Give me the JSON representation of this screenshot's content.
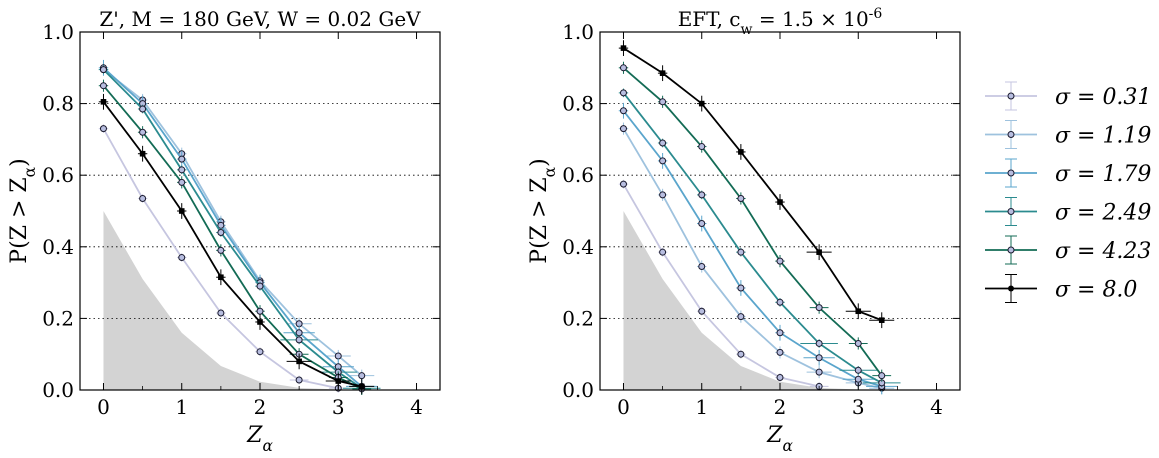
{
  "chart_data": [
    {
      "type": "line",
      "title": "Z', M = 180 GeV, W = 0.02 GeV",
      "xlabel": "Z_α",
      "ylabel": "P(Z > Z_α)",
      "xlim": [
        -0.3,
        4.3
      ],
      "ylim": [
        0.0,
        1.0
      ],
      "xticks": [
        "0",
        "1",
        "2",
        "3",
        "4"
      ],
      "yticks": [
        "0.0",
        "0.2",
        "0.4",
        "0.6",
        "0.8",
        "1.0"
      ],
      "grid": "horizontal dotted",
      "background_band": {
        "x": [
          0,
          0.5,
          1.0,
          1.5,
          2.0,
          2.5,
          3.0
        ],
        "y": [
          0.5,
          0.31,
          0.16,
          0.067,
          0.023,
          0.006,
          0.0013
        ]
      },
      "series": [
        {
          "name": "σ = 0.31",
          "color": "#c6c6e0",
          "x": [
            0,
            0.5,
            1.0,
            1.5,
            2.0,
            2.5,
            3.0
          ],
          "y": [
            0.73,
            0.535,
            0.37,
            0.215,
            0.107,
            0.028,
            0.005
          ]
        },
        {
          "name": "σ = 1.19",
          "color": "#9ec2de",
          "x": [
            0,
            0.5,
            1.0,
            1.5,
            2.0,
            2.5,
            3.0,
            3.3
          ],
          "y": [
            0.895,
            0.81,
            0.66,
            0.47,
            0.305,
            0.185,
            0.095,
            0.04
          ]
        },
        {
          "name": "σ = 1.79",
          "color": "#5aa5cc",
          "x": [
            0,
            0.5,
            1.0,
            1.5,
            2.0,
            2.5,
            3.0,
            3.3
          ],
          "y": [
            0.9,
            0.8,
            0.645,
            0.46,
            0.3,
            0.16,
            0.065,
            0.01
          ]
        },
        {
          "name": "σ = 2.49",
          "color": "#2b8b8f",
          "x": [
            0,
            0.5,
            1.0,
            1.5,
            2.0,
            2.5,
            3.0,
            3.3
          ],
          "y": [
            0.895,
            0.785,
            0.615,
            0.44,
            0.29,
            0.14,
            0.05,
            0.005
          ]
        },
        {
          "name": "σ = 4.23",
          "color": "#136b55",
          "x": [
            0,
            0.5,
            1.0,
            1.5,
            2.0,
            2.5,
            3.0,
            3.3
          ],
          "y": [
            0.85,
            0.72,
            0.58,
            0.39,
            0.22,
            0.1,
            0.035,
            0.003
          ]
        },
        {
          "name": "σ = 8.0",
          "color": "#000000",
          "x": [
            0,
            0.5,
            1.0,
            1.5,
            2.0,
            2.5,
            3.0,
            3.3
          ],
          "y": [
            0.805,
            0.66,
            0.5,
            0.315,
            0.19,
            0.08,
            0.025,
            0.01
          ]
        }
      ]
    },
    {
      "type": "line",
      "title": "EFT, c_w = 1.5 × 10^-6",
      "xlabel": "Z_α",
      "ylabel": "P(Z > Z_α)",
      "xlim": [
        -0.3,
        4.3
      ],
      "ylim": [
        0.0,
        1.0
      ],
      "xticks": [
        "0",
        "1",
        "2",
        "3",
        "4"
      ],
      "yticks": [
        "0.0",
        "0.2",
        "0.4",
        "0.6",
        "0.8",
        "1.0"
      ],
      "grid": "horizontal dotted",
      "background_band": {
        "x": [
          0,
          0.5,
          1.0,
          1.5,
          2.0,
          2.5,
          3.0
        ],
        "y": [
          0.5,
          0.31,
          0.16,
          0.067,
          0.023,
          0.006,
          0.0013
        ]
      },
      "series": [
        {
          "name": "σ = 0.31",
          "color": "#c6c6e0",
          "x": [
            0,
            0.5,
            1.0,
            1.5,
            2.0,
            2.5
          ],
          "y": [
            0.575,
            0.385,
            0.22,
            0.1,
            0.035,
            0.01
          ]
        },
        {
          "name": "σ = 1.19",
          "color": "#9ec2de",
          "x": [
            0,
            0.5,
            1.0,
            1.5,
            2.0,
            2.5,
            3.0,
            3.3
          ],
          "y": [
            0.73,
            0.545,
            0.345,
            0.205,
            0.105,
            0.05,
            0.02,
            0.005
          ]
        },
        {
          "name": "σ = 1.79",
          "color": "#5aa5cc",
          "x": [
            0,
            0.5,
            1.0,
            1.5,
            2.0,
            2.5,
            3.0,
            3.3
          ],
          "y": [
            0.78,
            0.64,
            0.465,
            0.285,
            0.16,
            0.09,
            0.03,
            0.01
          ]
        },
        {
          "name": "σ = 2.49",
          "color": "#2b8b8f",
          "x": [
            0,
            0.5,
            1.0,
            1.5,
            2.0,
            2.5,
            3.0,
            3.3
          ],
          "y": [
            0.83,
            0.69,
            0.545,
            0.385,
            0.245,
            0.13,
            0.055,
            0.02
          ]
        },
        {
          "name": "σ = 4.23",
          "color": "#136b55",
          "x": [
            0,
            0.5,
            1.0,
            1.5,
            2.0,
            2.5,
            3.0,
            3.3
          ],
          "y": [
            0.9,
            0.805,
            0.68,
            0.535,
            0.36,
            0.23,
            0.13,
            0.04
          ]
        },
        {
          "name": "σ = 8.0",
          "color": "#000000",
          "x": [
            0,
            0.5,
            1.0,
            1.5,
            2.0,
            2.5,
            3.0,
            3.3
          ],
          "y": [
            0.955,
            0.885,
            0.8,
            0.665,
            0.525,
            0.385,
            0.22,
            0.195
          ]
        }
      ]
    }
  ],
  "legend": {
    "placement": "right",
    "entries": [
      {
        "label": "σ = 0.31",
        "color": "#c6c6e0"
      },
      {
        "label": "σ = 1.19",
        "color": "#9ec2de"
      },
      {
        "label": "σ = 1.79",
        "color": "#5aa5cc"
      },
      {
        "label": "σ = 2.49",
        "color": "#2b8b8f"
      },
      {
        "label": "σ = 4.23",
        "color": "#136b55"
      },
      {
        "label": "σ = 8.0",
        "color": "#000000"
      }
    ]
  },
  "colors": {
    "band": "#d3d3d3",
    "grid": "#000000",
    "marker_face": "#b8bee0"
  }
}
